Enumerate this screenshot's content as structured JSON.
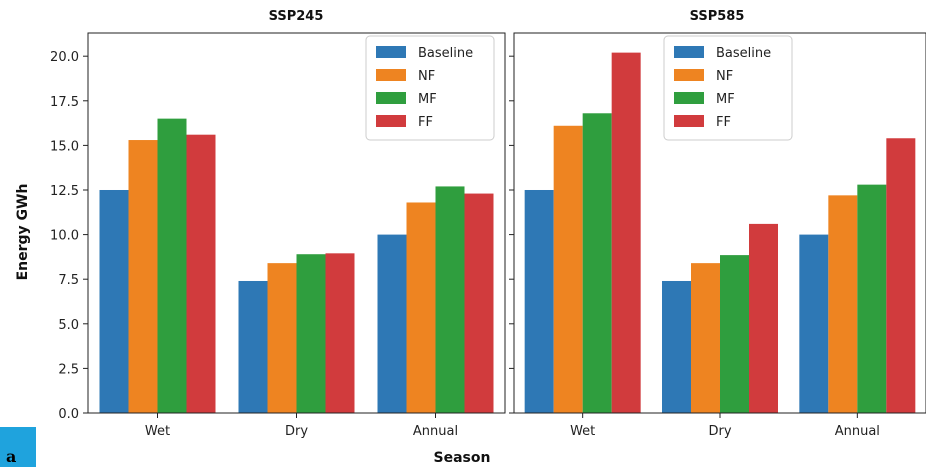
{
  "figure_label": "a",
  "shared": {
    "xlabel": "Season",
    "ylabel": "Energy GWh"
  },
  "chart_data": [
    {
      "type": "bar",
      "title": "SSP245",
      "categories": [
        "Wet",
        "Dry",
        "Annual"
      ],
      "series": [
        {
          "name": "Baseline",
          "color": "#2e78b5",
          "values": [
            12.5,
            7.4,
            10.0
          ]
        },
        {
          "name": "NF",
          "color": "#ee8421",
          "values": [
            15.3,
            8.4,
            11.8
          ]
        },
        {
          "name": "MF",
          "color": "#2f9e3e",
          "values": [
            16.5,
            8.9,
            12.7
          ]
        },
        {
          "name": "FF",
          "color": "#d13b3d",
          "values": [
            15.6,
            8.95,
            12.3
          ]
        }
      ],
      "ylim": [
        0,
        21.3
      ],
      "yticks": [
        "0.0",
        "2.5",
        "5.0",
        "7.5",
        "10.0",
        "12.5",
        "15.0",
        "17.5",
        "20.0"
      ],
      "legend": "top-right"
    },
    {
      "type": "bar",
      "title": "SSP585",
      "categories": [
        "Wet",
        "Dry",
        "Annual"
      ],
      "series": [
        {
          "name": "Baseline",
          "color": "#2e78b5",
          "values": [
            12.5,
            7.4,
            10.0
          ]
        },
        {
          "name": "NF",
          "color": "#ee8421",
          "values": [
            16.1,
            8.4,
            12.2
          ]
        },
        {
          "name": "MF",
          "color": "#2f9e3e",
          "values": [
            16.8,
            8.85,
            12.8
          ]
        },
        {
          "name": "FF",
          "color": "#d13b3d",
          "values": [
            20.2,
            10.6,
            15.4
          ]
        }
      ],
      "ylim": [
        0,
        21.3
      ],
      "legend": "top-center"
    }
  ]
}
